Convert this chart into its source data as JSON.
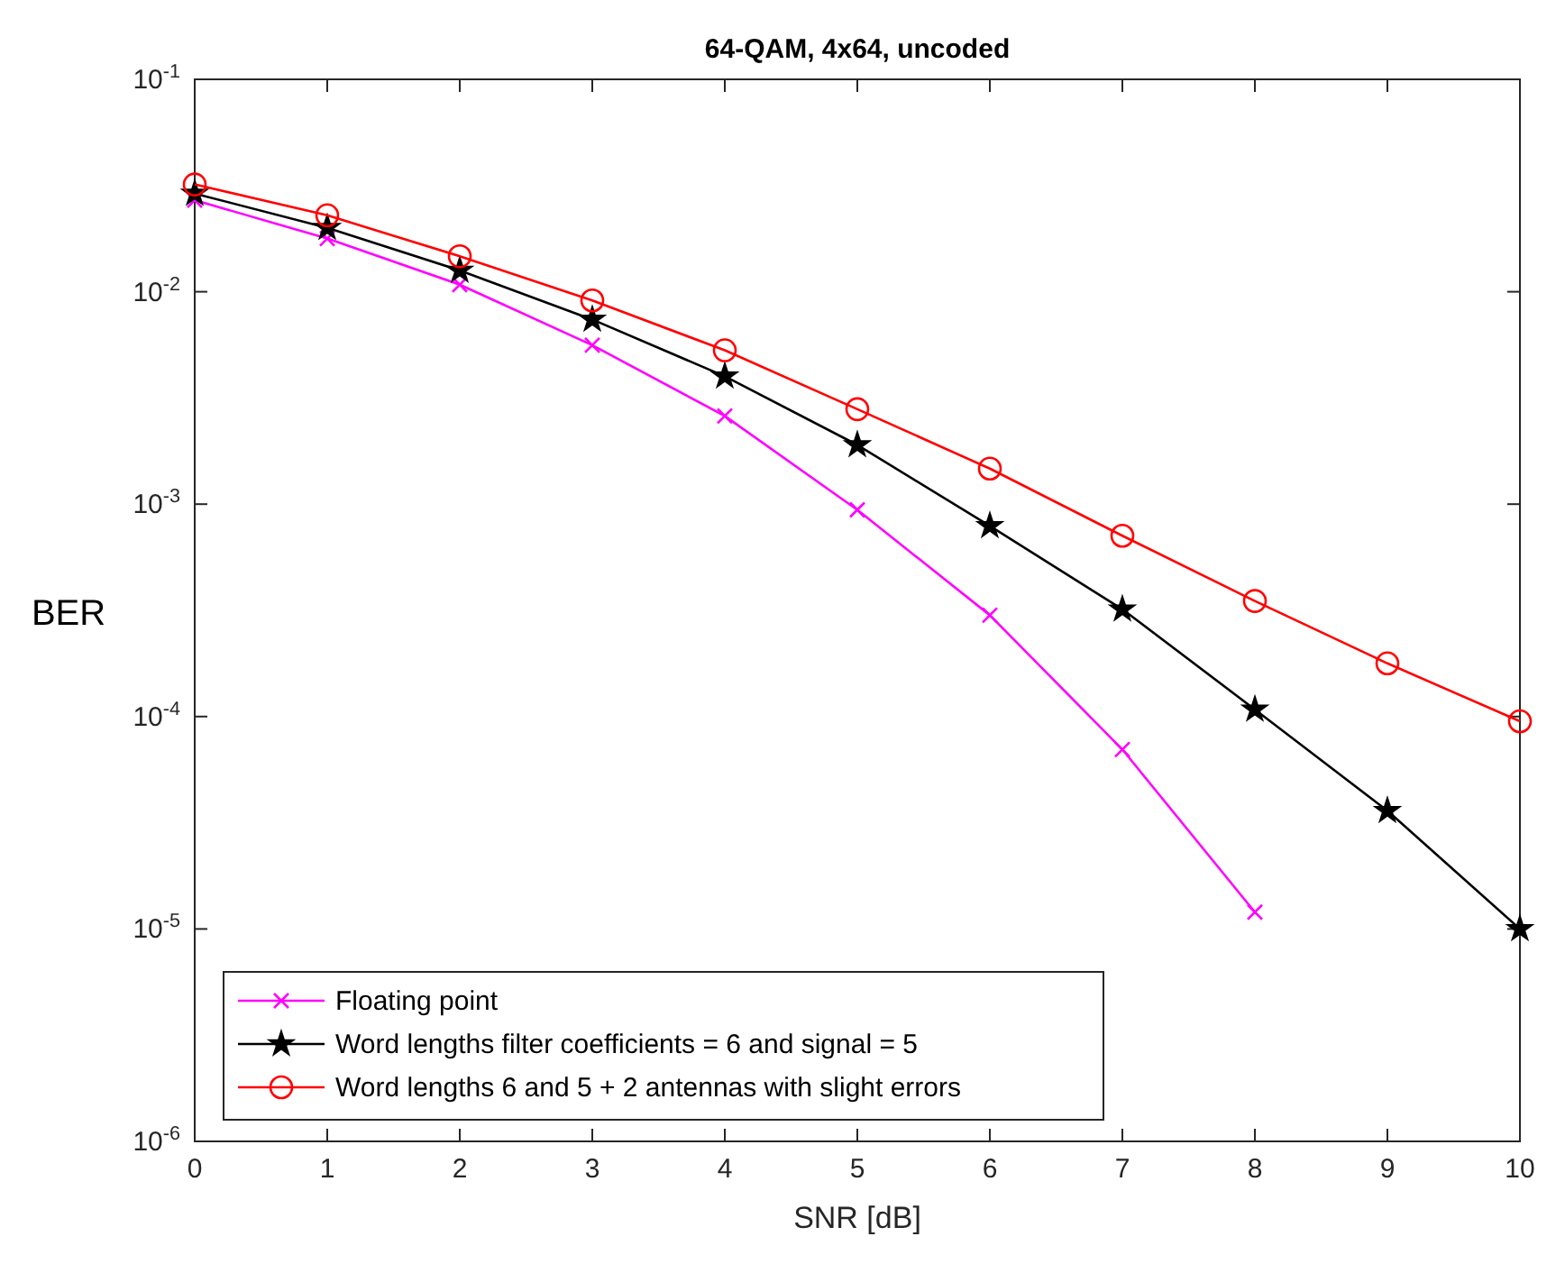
{
  "chart_data": {
    "type": "line",
    "title": "64-QAM, 4x64, uncoded",
    "xlabel": "SNR [dB]",
    "ylabel": "BER",
    "x": [
      0,
      1,
      2,
      3,
      4,
      5,
      6,
      7,
      8,
      9,
      10
    ],
    "log": true,
    "xlim": [
      0,
      10
    ],
    "xticks": [
      0,
      1,
      2,
      3,
      4,
      5,
      6,
      7,
      8,
      9,
      10
    ],
    "ylim": [
      1e-06,
      0.1
    ],
    "yticks": [
      {
        "value": 1e-06,
        "label": "10$^{-6}$"
      },
      {
        "value": 1e-05,
        "label": "10$^{-5}$"
      },
      {
        "value": 0.0001,
        "label": "10$^{-4}$"
      },
      {
        "value": 0.001,
        "label": "10$^{-3}$"
      },
      {
        "value": 0.01,
        "label": "10$^{-2}$"
      },
      {
        "value": 0.1,
        "label": "10$^{-1}$"
      }
    ],
    "legend": "bottom left",
    "series": [
      {
        "name": "Floating point",
        "color": "#ff00ff",
        "marker": "cross",
        "values": [
          0.027,
          0.0178,
          0.0108,
          0.0056,
          0.0026,
          0.00094,
          0.0003,
          7e-05,
          1.2e-05,
          null,
          null
        ]
      },
      {
        "name": "Word lengths filter coefficients = 6 and signal = 5",
        "color": "#000000",
        "marker": "star",
        "values": [
          0.029,
          0.02,
          0.0126,
          0.0074,
          0.004,
          0.0019,
          0.00079,
          0.00032,
          0.000108,
          3.6e-05,
          1e-05
        ]
      },
      {
        "name": "Word lengths 6 and 5 + 2 antennas with slight errors",
        "color": "#ff0000",
        "marker": "circle",
        "values": [
          0.032,
          0.0229,
          0.0147,
          0.0091,
          0.0053,
          0.0028,
          0.00147,
          0.00071,
          0.00035,
          0.000178,
          9.5e-05
        ]
      }
    ]
  }
}
